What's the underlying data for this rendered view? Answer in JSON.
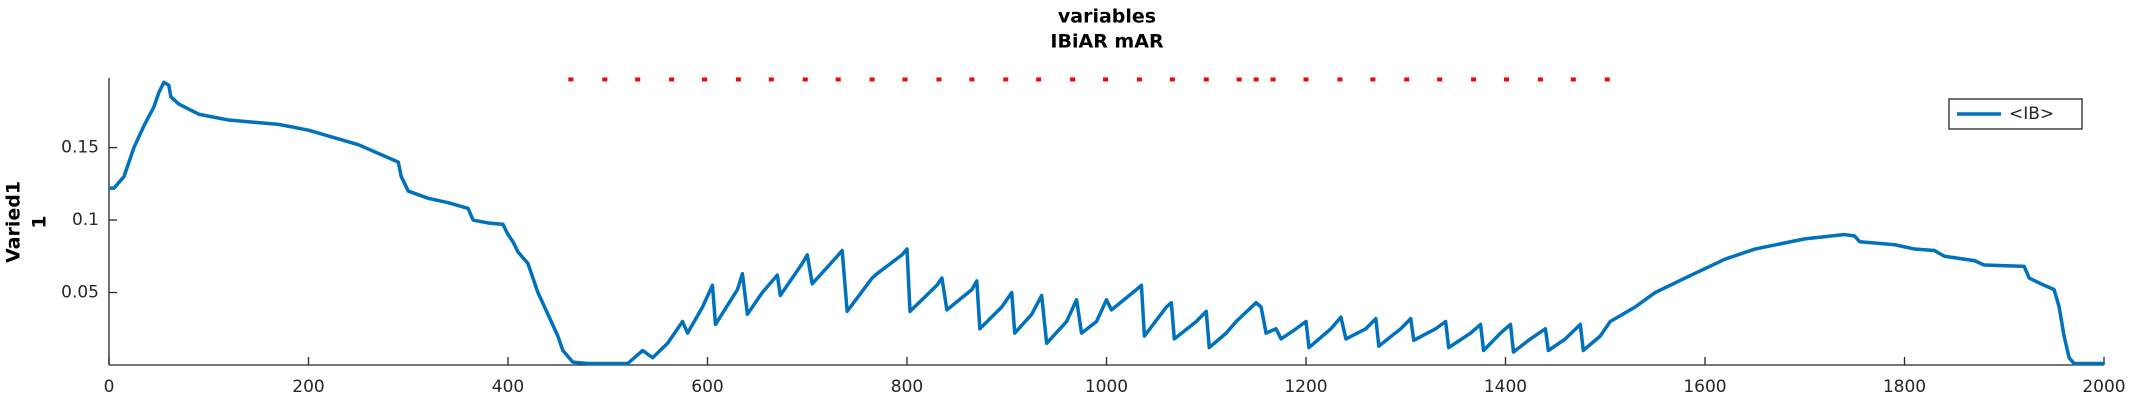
{
  "chart_data": {
    "type": "line",
    "title": [
      "variables",
      "IBiAR mAR"
    ],
    "ylabel": [
      "Varied1",
      "1"
    ],
    "xlim": [
      0,
      2000
    ],
    "xticks": [
      0,
      200,
      400,
      600,
      800,
      1000,
      1200,
      1400,
      1600,
      1800,
      2000
    ],
    "ylim": [
      0,
      0.198
    ],
    "yticks": [
      0.05,
      0.1,
      0.15
    ],
    "legend": "northeast",
    "series": [
      {
        "name": "<IB>",
        "color": "#0072bd",
        "x": [
          0,
          5,
          15,
          25,
          35,
          45,
          50,
          55,
          60,
          62,
          70,
          90,
          120,
          170,
          200,
          250,
          280,
          290,
          293,
          300,
          320,
          340,
          360,
          365,
          380,
          395,
          400,
          405,
          410,
          420,
          425,
          430,
          440,
          450,
          455,
          465,
          480,
          520,
          535,
          545,
          560,
          575,
          580,
          595,
          605,
          608,
          630,
          635,
          640,
          655,
          670,
          673,
          695,
          700,
          705,
          730,
          735,
          740,
          765,
          770,
          795,
          800,
          803,
          830,
          835,
          840,
          865,
          870,
          873,
          895,
          905,
          908,
          925,
          935,
          940,
          960,
          970,
          975,
          990,
          1000,
          1005,
          1030,
          1035,
          1038,
          1060,
          1065,
          1068,
          1090,
          1100,
          1103,
          1120,
          1130,
          1150,
          1155,
          1160,
          1170,
          1175,
          1190,
          1200,
          1203,
          1225,
          1235,
          1240,
          1260,
          1270,
          1273,
          1295,
          1305,
          1308,
          1330,
          1340,
          1343,
          1365,
          1375,
          1378,
          1395,
          1405,
          1408,
          1425,
          1440,
          1443,
          1460,
          1475,
          1478,
          1495,
          1505,
          1530,
          1550,
          1580,
          1620,
          1650,
          1700,
          1740,
          1750,
          1755,
          1790,
          1810,
          1830,
          1840,
          1870,
          1880,
          1920,
          1925,
          1940,
          1950,
          1955,
          1960,
          1965,
          1970,
          2000
        ],
        "values": [
          0.122,
          0.122,
          0.13,
          0.15,
          0.165,
          0.178,
          0.188,
          0.195,
          0.193,
          0.185,
          0.18,
          0.173,
          0.169,
          0.166,
          0.162,
          0.152,
          0.143,
          0.14,
          0.13,
          0.12,
          0.115,
          0.112,
          0.108,
          0.1,
          0.098,
          0.097,
          0.09,
          0.085,
          0.078,
          0.07,
          0.06,
          0.05,
          0.035,
          0.02,
          0.01,
          0.002,
          0.001,
          0.001,
          0.01,
          0.005,
          0.015,
          0.03,
          0.022,
          0.04,
          0.055,
          0.028,
          0.052,
          0.063,
          0.035,
          0.05,
          0.062,
          0.048,
          0.07,
          0.076,
          0.056,
          0.075,
          0.079,
          0.037,
          0.06,
          0.063,
          0.076,
          0.08,
          0.037,
          0.055,
          0.06,
          0.038,
          0.052,
          0.058,
          0.025,
          0.04,
          0.05,
          0.022,
          0.035,
          0.048,
          0.015,
          0.03,
          0.045,
          0.022,
          0.03,
          0.045,
          0.038,
          0.052,
          0.055,
          0.02,
          0.04,
          0.043,
          0.018,
          0.03,
          0.037,
          0.012,
          0.022,
          0.03,
          0.043,
          0.04,
          0.022,
          0.025,
          0.018,
          0.025,
          0.03,
          0.012,
          0.025,
          0.033,
          0.018,
          0.025,
          0.032,
          0.013,
          0.025,
          0.032,
          0.017,
          0.025,
          0.03,
          0.012,
          0.022,
          0.028,
          0.01,
          0.022,
          0.028,
          0.009,
          0.018,
          0.025,
          0.01,
          0.018,
          0.028,
          0.01,
          0.02,
          0.03,
          0.04,
          0.05,
          0.06,
          0.073,
          0.08,
          0.087,
          0.09,
          0.089,
          0.085,
          0.083,
          0.08,
          0.079,
          0.075,
          0.072,
          0.069,
          0.068,
          0.06,
          0.055,
          0.052,
          0.04,
          0.02,
          0.005,
          0.001,
          0.001
        ]
      },
      {
        "color": "#ff0000",
        "x": [
          463,
          497,
          530,
          564,
          597,
          631,
          664,
          698,
          731,
          765,
          798,
          832,
          865,
          899,
          932,
          966,
          999,
          1033,
          1066,
          1100,
          1133,
          1150,
          1167,
          1200,
          1234,
          1267,
          1301,
          1334,
          1368,
          1401,
          1435,
          1468,
          1502
        ],
        "values": [
          0.197,
          0.197,
          0.197,
          0.197,
          0.197,
          0.197,
          0.197,
          0.197,
          0.197,
          0.197,
          0.197,
          0.197,
          0.197,
          0.197,
          0.197,
          0.197,
          0.197,
          0.197,
          0.197,
          0.197,
          0.197,
          0.197,
          0.197,
          0.197,
          0.197,
          0.197,
          0.197,
          0.197,
          0.197,
          0.197,
          0.197,
          0.197,
          0.197
        ]
      }
    ]
  }
}
